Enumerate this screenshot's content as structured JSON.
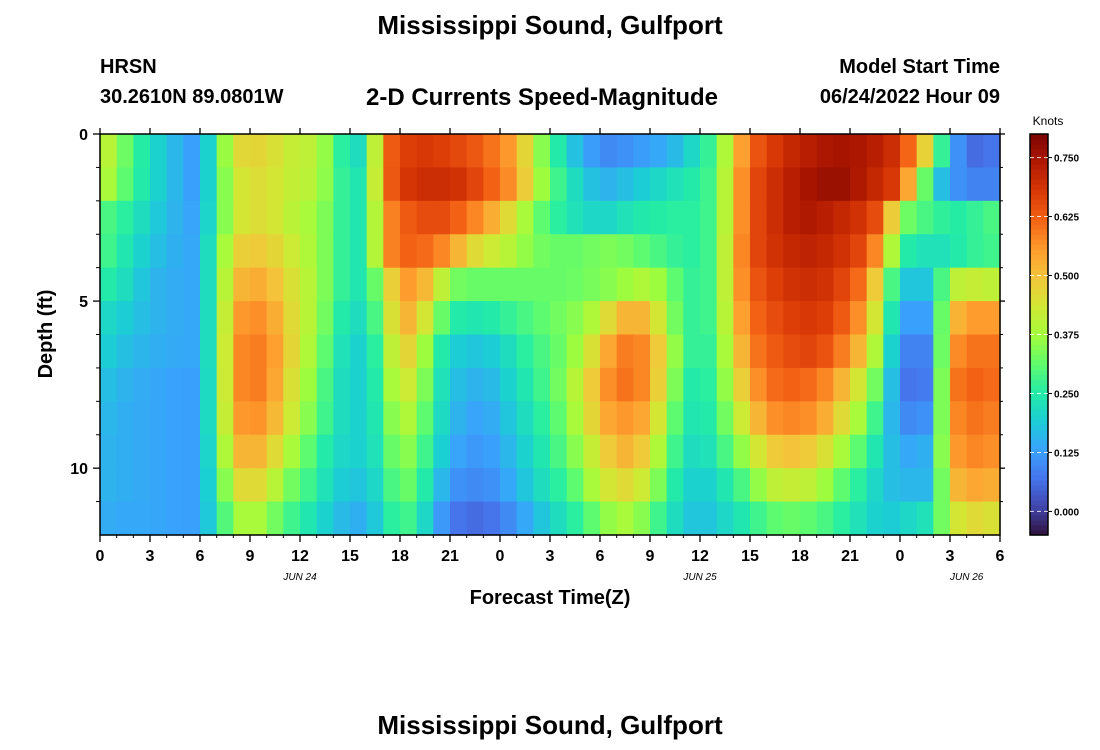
{
  "header": {
    "title": "Mississippi Sound, Gulfport",
    "station": "HRSN",
    "latlon": "30.2610N  89.0801W",
    "subtitle": "2-D Currents Speed-Magnitude",
    "model_label": "Model Start Time",
    "model_time": "06/24/2022 Hour 09"
  },
  "footer": {
    "title": "Mississippi Sound, Gulfport"
  },
  "chart_data": {
    "type": "heatmap",
    "title": "2-D Currents Speed-Magnitude",
    "xlabel": "Forecast Time(Z)",
    "ylabel": "Depth (ft)",
    "x_unit": "hours from 00Z JUN 24",
    "x_range": [
      0,
      54
    ],
    "y_range": [
      0,
      12
    ],
    "y_inverted": true,
    "x_tick_values": [
      0,
      3,
      6,
      9,
      12,
      15,
      18,
      21,
      24,
      27,
      30,
      33,
      36,
      39,
      42,
      45,
      48,
      51,
      54
    ],
    "x_tick_labels": [
      "0",
      "3",
      "6",
      "9",
      "12",
      "15",
      "18",
      "21",
      "0",
      "3",
      "6",
      "9",
      "12",
      "15",
      "18",
      "21",
      "0",
      "3",
      "6"
    ],
    "y_tick_values": [
      0,
      5,
      10
    ],
    "y_tick_labels": [
      "0",
      "5",
      "10"
    ],
    "date_labels": [
      {
        "text": "JUN 24",
        "x": 12
      },
      {
        "text": "JUN 25",
        "x": 36
      },
      {
        "text": "JUN 26",
        "x": 52
      }
    ],
    "colorbar": {
      "label": "Knots",
      "min": -0.05,
      "max": 0.8,
      "ticks": [
        0.0,
        0.125,
        0.25,
        0.375,
        0.5,
        0.625,
        0.75
      ],
      "tick_labels": [
        "0.000",
        "0.125",
        "0.250",
        "0.375",
        "0.500",
        "0.625",
        "0.750"
      ],
      "colors": [
        "#30123b",
        "#4145ab",
        "#4675ed",
        "#39a2fc",
        "#1bcfd4",
        "#24eca6",
        "#61fc6c",
        "#a4fc3b",
        "#d1e834",
        "#f3c63a",
        "#fe9b2d",
        "#f36315",
        "#d93806",
        "#b11901",
        "#7a0402"
      ]
    },
    "depths": [
      0.5,
      1.5,
      2.5,
      3.5,
      4.5,
      5.5,
      6.5,
      7.5,
      8.5,
      9.5,
      10.5,
      11.5
    ],
    "anchor_hours": [
      0,
      1,
      3,
      5,
      6,
      7,
      8,
      9,
      10,
      11,
      12,
      13,
      14,
      15,
      16,
      17,
      18,
      19,
      20,
      21,
      22,
      23,
      24,
      25,
      26,
      27,
      28,
      29,
      30,
      31,
      32,
      33,
      34,
      35,
      36,
      37,
      38,
      39,
      40,
      41,
      42,
      43,
      44,
      45,
      46,
      47,
      48,
      49,
      50,
      51,
      52,
      53,
      54
    ],
    "anchor_values": [
      [
        0.44,
        0.36,
        0.22,
        0.14,
        0.12,
        0.28,
        0.45,
        0.48,
        0.46,
        0.44,
        0.4,
        0.42,
        0.3,
        0.22,
        0.22,
        0.6,
        0.66,
        0.68,
        0.68,
        0.66,
        0.65,
        0.62,
        0.58,
        0.54,
        0.4,
        0.3,
        0.2,
        0.15,
        0.1,
        0.1,
        0.12,
        0.13,
        0.15,
        0.18,
        0.24,
        0.3,
        0.48,
        0.62,
        0.66,
        0.7,
        0.72,
        0.74,
        0.75,
        0.75,
        0.74,
        0.72,
        0.68,
        0.55,
        0.4,
        0.14,
        0.08,
        0.04,
        0.1
      ],
      [
        0.42,
        0.34,
        0.22,
        0.14,
        0.12,
        0.28,
        0.42,
        0.46,
        0.45,
        0.43,
        0.4,
        0.41,
        0.3,
        0.24,
        0.24,
        0.6,
        0.67,
        0.7,
        0.7,
        0.7,
        0.68,
        0.64,
        0.6,
        0.55,
        0.42,
        0.32,
        0.24,
        0.2,
        0.15,
        0.16,
        0.18,
        0.2,
        0.22,
        0.24,
        0.26,
        0.3,
        0.5,
        0.64,
        0.68,
        0.72,
        0.74,
        0.76,
        0.77,
        0.76,
        0.72,
        0.7,
        0.66,
        0.42,
        0.22,
        0.12,
        0.1,
        0.08,
        0.1
      ],
      [
        0.3,
        0.28,
        0.2,
        0.14,
        0.13,
        0.28,
        0.42,
        0.46,
        0.45,
        0.43,
        0.38,
        0.38,
        0.3,
        0.24,
        0.24,
        0.55,
        0.62,
        0.64,
        0.66,
        0.64,
        0.6,
        0.56,
        0.5,
        0.42,
        0.34,
        0.28,
        0.24,
        0.22,
        0.2,
        0.22,
        0.24,
        0.25,
        0.26,
        0.26,
        0.26,
        0.3,
        0.5,
        0.64,
        0.68,
        0.72,
        0.74,
        0.74,
        0.72,
        0.7,
        0.68,
        0.62,
        0.35,
        0.3,
        0.28,
        0.25,
        0.26,
        0.28,
        0.3
      ],
      [
        0.3,
        0.26,
        0.18,
        0.14,
        0.14,
        0.3,
        0.46,
        0.5,
        0.48,
        0.46,
        0.4,
        0.38,
        0.3,
        0.24,
        0.24,
        0.55,
        0.62,
        0.62,
        0.6,
        0.56,
        0.48,
        0.44,
        0.42,
        0.38,
        0.34,
        0.32,
        0.32,
        0.32,
        0.34,
        0.34,
        0.32,
        0.3,
        0.28,
        0.26,
        0.26,
        0.3,
        0.52,
        0.64,
        0.68,
        0.7,
        0.72,
        0.72,
        0.7,
        0.68,
        0.64,
        0.52,
        0.26,
        0.24,
        0.22,
        0.24,
        0.26,
        0.28,
        0.28
      ],
      [
        0.26,
        0.24,
        0.16,
        0.14,
        0.14,
        0.3,
        0.5,
        0.54,
        0.52,
        0.48,
        0.42,
        0.38,
        0.3,
        0.24,
        0.24,
        0.4,
        0.56,
        0.55,
        0.48,
        0.34,
        0.32,
        0.32,
        0.32,
        0.32,
        0.32,
        0.32,
        0.32,
        0.33,
        0.34,
        0.36,
        0.38,
        0.4,
        0.34,
        0.28,
        0.26,
        0.3,
        0.52,
        0.62,
        0.66,
        0.68,
        0.7,
        0.7,
        0.68,
        0.64,
        0.58,
        0.4,
        0.18,
        0.18,
        0.18,
        0.4,
        0.42,
        0.42,
        0.4
      ],
      [
        0.22,
        0.2,
        0.16,
        0.14,
        0.14,
        0.3,
        0.54,
        0.58,
        0.56,
        0.5,
        0.42,
        0.38,
        0.28,
        0.22,
        0.22,
        0.36,
        0.54,
        0.5,
        0.38,
        0.26,
        0.24,
        0.24,
        0.26,
        0.28,
        0.3,
        0.32,
        0.34,
        0.36,
        0.42,
        0.5,
        0.54,
        0.5,
        0.38,
        0.28,
        0.26,
        0.3,
        0.5,
        0.6,
        0.64,
        0.66,
        0.68,
        0.68,
        0.66,
        0.6,
        0.54,
        0.34,
        0.14,
        0.12,
        0.14,
        0.5,
        0.55,
        0.56,
        0.55
      ],
      [
        0.2,
        0.18,
        0.15,
        0.14,
        0.14,
        0.3,
        0.56,
        0.6,
        0.58,
        0.52,
        0.42,
        0.36,
        0.26,
        0.2,
        0.2,
        0.32,
        0.5,
        0.44,
        0.3,
        0.2,
        0.18,
        0.18,
        0.2,
        0.24,
        0.28,
        0.3,
        0.34,
        0.4,
        0.5,
        0.58,
        0.6,
        0.56,
        0.42,
        0.3,
        0.24,
        0.3,
        0.46,
        0.58,
        0.62,
        0.64,
        0.66,
        0.66,
        0.62,
        0.56,
        0.48,
        0.3,
        0.1,
        0.08,
        0.1,
        0.55,
        0.6,
        0.6,
        0.6
      ],
      [
        0.18,
        0.16,
        0.14,
        0.13,
        0.13,
        0.3,
        0.56,
        0.6,
        0.58,
        0.5,
        0.4,
        0.34,
        0.24,
        0.2,
        0.2,
        0.3,
        0.46,
        0.4,
        0.28,
        0.18,
        0.16,
        0.15,
        0.18,
        0.22,
        0.26,
        0.3,
        0.36,
        0.44,
        0.54,
        0.6,
        0.6,
        0.56,
        0.4,
        0.28,
        0.22,
        0.3,
        0.42,
        0.54,
        0.6,
        0.62,
        0.62,
        0.6,
        0.56,
        0.48,
        0.4,
        0.26,
        0.08,
        0.06,
        0.1,
        0.58,
        0.62,
        0.62,
        0.6
      ],
      [
        0.17,
        0.15,
        0.14,
        0.13,
        0.13,
        0.3,
        0.54,
        0.58,
        0.55,
        0.48,
        0.38,
        0.32,
        0.24,
        0.2,
        0.2,
        0.28,
        0.42,
        0.36,
        0.26,
        0.17,
        0.14,
        0.13,
        0.16,
        0.2,
        0.24,
        0.28,
        0.34,
        0.42,
        0.52,
        0.56,
        0.56,
        0.52,
        0.36,
        0.26,
        0.22,
        0.28,
        0.38,
        0.48,
        0.56,
        0.58,
        0.58,
        0.56,
        0.5,
        0.42,
        0.34,
        0.22,
        0.1,
        0.1,
        0.12,
        0.56,
        0.6,
        0.6,
        0.58
      ],
      [
        0.16,
        0.15,
        0.14,
        0.13,
        0.13,
        0.28,
        0.5,
        0.54,
        0.5,
        0.42,
        0.34,
        0.28,
        0.22,
        0.2,
        0.2,
        0.26,
        0.38,
        0.32,
        0.24,
        0.15,
        0.12,
        0.12,
        0.14,
        0.18,
        0.22,
        0.26,
        0.32,
        0.38,
        0.46,
        0.52,
        0.52,
        0.46,
        0.32,
        0.24,
        0.2,
        0.26,
        0.32,
        0.4,
        0.48,
        0.5,
        0.5,
        0.48,
        0.42,
        0.34,
        0.28,
        0.2,
        0.14,
        0.14,
        0.16,
        0.54,
        0.58,
        0.58,
        0.56
      ],
      [
        0.16,
        0.15,
        0.14,
        0.13,
        0.13,
        0.26,
        0.44,
        0.48,
        0.44,
        0.36,
        0.3,
        0.26,
        0.2,
        0.18,
        0.18,
        0.24,
        0.34,
        0.3,
        0.2,
        0.12,
        0.1,
        0.1,
        0.12,
        0.16,
        0.2,
        0.24,
        0.28,
        0.34,
        0.42,
        0.46,
        0.46,
        0.4,
        0.28,
        0.22,
        0.18,
        0.22,
        0.26,
        0.32,
        0.4,
        0.42,
        0.42,
        0.4,
        0.34,
        0.28,
        0.24,
        0.18,
        0.16,
        0.16,
        0.16,
        0.5,
        0.54,
        0.54,
        0.52
      ],
      [
        0.15,
        0.14,
        0.14,
        0.13,
        0.13,
        0.24,
        0.36,
        0.4,
        0.36,
        0.3,
        0.26,
        0.22,
        0.18,
        0.15,
        0.15,
        0.22,
        0.3,
        0.26,
        0.16,
        0.08,
        0.06,
        0.06,
        0.08,
        0.12,
        0.16,
        0.2,
        0.24,
        0.28,
        0.34,
        0.38,
        0.38,
        0.32,
        0.24,
        0.2,
        0.16,
        0.2,
        0.22,
        0.26,
        0.3,
        0.32,
        0.32,
        0.3,
        0.28,
        0.24,
        0.22,
        0.18,
        0.2,
        0.22,
        0.24,
        0.42,
        0.46,
        0.46,
        0.44
      ]
    ]
  }
}
